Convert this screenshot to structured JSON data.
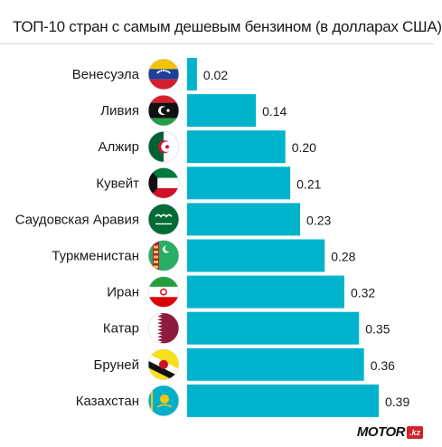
{
  "title": "ТОП-10 стран с самым дешевым бензином (в долларах США)",
  "logo": {
    "text": "MOTOR",
    "badge": ".kz"
  },
  "colors": {
    "bar": "#00b3cc",
    "text": "#1a1a1a",
    "logo_badge": "#d3232a"
  },
  "chart_data": {
    "type": "bar",
    "orientation": "horizontal",
    "title": "ТОП-10 стран с самым дешевым бензином (в долларах США)",
    "xlabel": "",
    "ylabel": "",
    "xlim": [
      0,
      0.39
    ],
    "grid": false,
    "categories": [
      "Венесуэла",
      "Ливия",
      "Алжир",
      "Кувейт",
      "Саудовская Аравия",
      "Туркменистан",
      "Иран",
      "Катар",
      "Бруней",
      "Казахстан"
    ],
    "values": [
      0.02,
      0.14,
      0.2,
      0.21,
      0.23,
      0.28,
      0.32,
      0.35,
      0.36,
      0.39
    ],
    "value_labels": [
      "0.02",
      "0.14",
      "0.20",
      "0.21",
      "0.23",
      "0.28",
      "0.32",
      "0.35",
      "0.36",
      "0.39"
    ],
    "flags": [
      "venezuela-flag-icon",
      "libya-flag-icon",
      "algeria-flag-icon",
      "kuwait-flag-icon",
      "saudi-arabia-flag-icon",
      "turkmenistan-flag-icon",
      "iran-flag-icon",
      "qatar-flag-icon",
      "brunei-flag-icon",
      "kazakhstan-flag-icon"
    ]
  }
}
